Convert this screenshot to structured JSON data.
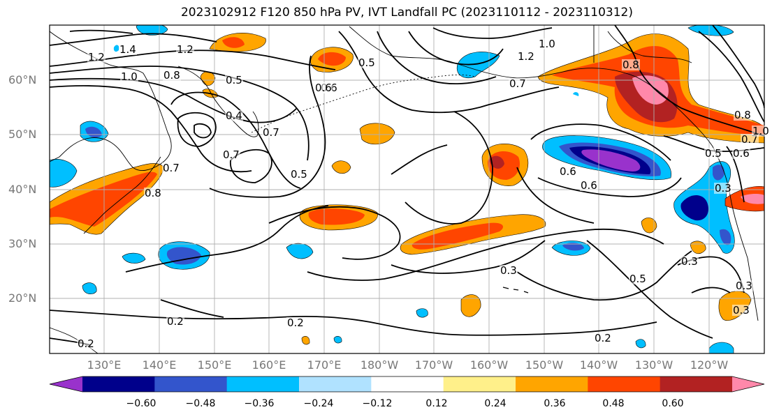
{
  "title": "2023102912 F120 850 hPa PV, IVT Landfall PC (2023110112 - 2023110312)",
  "map": {
    "lat_labels": [
      "60°N",
      "50°N",
      "40°N",
      "30°N",
      "20°N"
    ],
    "lon_labels": [
      "130°E",
      "140°E",
      "150°E",
      "160°E",
      "170°E",
      "180°W",
      "170°W",
      "160°W",
      "150°W",
      "140°W",
      "130°W",
      "120°W"
    ],
    "contour_labels": [
      "1.2",
      "1.4",
      "1.2",
      "1.0",
      "1.2",
      "1.0",
      "0.8",
      "0.8",
      "0.5",
      "0.6",
      "0.5",
      "0.4",
      "0.7",
      "0.7",
      "0.7",
      "0.8",
      "0.7",
      "0.6",
      "0.6",
      "0.3",
      "0.5",
      "0.6",
      "0.7",
      "0.5",
      "0.3",
      "0.3",
      "0.5",
      "0.3",
      "0.2",
      "0.2",
      "0.2",
      "0.2",
      "0.3",
      "0.6",
      "1.0",
      "0.8"
    ]
  },
  "colorbar": {
    "colors": [
      "#9932cc",
      "#00008b",
      "#3355cc",
      "#00bfff",
      "#b0e2ff",
      "#ffffff",
      "#fff08a",
      "#ffa500",
      "#ff4500",
      "#b22222",
      "#ff88aa"
    ],
    "tick_labels": [
      "−0.60",
      "−0.48",
      "−0.36",
      "−0.24",
      "−0.12",
      "0.12",
      "0.24",
      "0.36",
      "0.48",
      "0.60"
    ]
  }
}
